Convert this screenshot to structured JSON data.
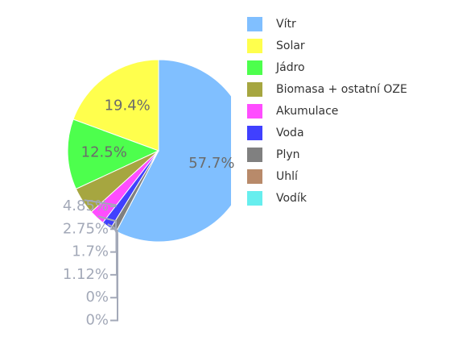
{
  "chart_data": {
    "type": "pie",
    "categories": [
      "Vítr",
      "Solar",
      "Jádro",
      "Biomasa + ostatní OZE",
      "Akumulace",
      "Voda",
      "Plyn",
      "Uhlí",
      "Vodík"
    ],
    "values": [
      57.7,
      19.4,
      12.5,
      4.85,
      2.75,
      1.7,
      1.12,
      0,
      0
    ],
    "value_labels": [
      "57.7%",
      "19.4%",
      "12.5%",
      "4.85%",
      "2.75%",
      "1.7%",
      "1.12%",
      "0%",
      "0%"
    ],
    "colors": [
      "#80bfff",
      "#ffff4d",
      "#4dff4d",
      "#a6a640",
      "#ff4dff",
      "#4040ff",
      "#808080",
      "#b88a6a",
      "#66eeee"
    ],
    "legend": "right"
  }
}
